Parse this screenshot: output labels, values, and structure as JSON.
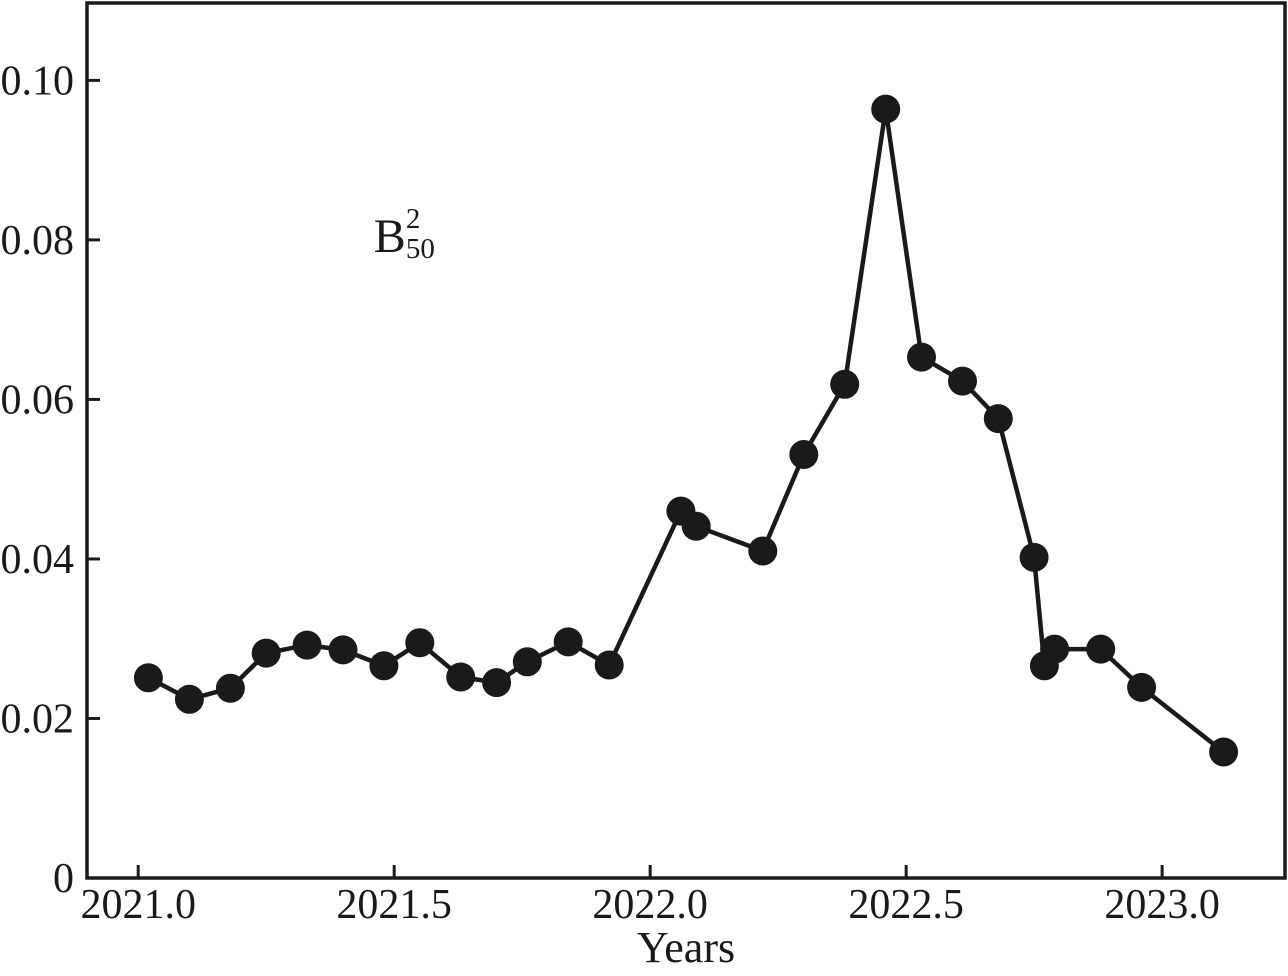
{
  "colors": {
    "foreground": "#1a1a1a",
    "background": "#ffffff"
  },
  "chart_data": {
    "type": "line",
    "title": "",
    "xlabel": "Years",
    "ylabel": "",
    "grid": false,
    "legend": "none",
    "xlim": [
      2020.9,
      2023.24
    ],
    "ylim": [
      0,
      0.1097
    ],
    "x_ticks": {
      "values": [
        2021.0,
        2021.5,
        2022.0,
        2022.5,
        2023.0
      ],
      "labels": [
        "2021.0",
        "2021.5",
        "2022.0",
        "2022.5",
        "2023.0"
      ]
    },
    "y_ticks": {
      "values": [
        0,
        0.02,
        0.04,
        0.06,
        0.08,
        0.1
      ],
      "labels": [
        "0",
        "0.02",
        "0.04",
        "0.06",
        "0.08",
        "0.10"
      ]
    },
    "annotation": {
      "base": "B",
      "superscript": "2",
      "subscript": "50",
      "x": 2021.46,
      "y": 0.0785
    },
    "series": [
      {
        "name": "B50-squared",
        "color": "#1a1a1a",
        "marker": "filled-circle",
        "points": [
          [
            2021.02,
            0.0251
          ],
          [
            2021.1,
            0.0224
          ],
          [
            2021.18,
            0.0238
          ],
          [
            2021.25,
            0.0282
          ],
          [
            2021.33,
            0.0292
          ],
          [
            2021.4,
            0.0286
          ],
          [
            2021.48,
            0.0266
          ],
          [
            2021.55,
            0.0295
          ],
          [
            2021.63,
            0.0252
          ],
          [
            2021.7,
            0.0245
          ],
          [
            2021.76,
            0.0271
          ],
          [
            2021.84,
            0.0296
          ],
          [
            2021.92,
            0.0267
          ],
          [
            2022.06,
            0.046
          ],
          [
            2022.09,
            0.0441
          ],
          [
            2022.22,
            0.041
          ],
          [
            2022.3,
            0.0531
          ],
          [
            2022.38,
            0.0619
          ],
          [
            2022.46,
            0.0964
          ],
          [
            2022.53,
            0.0653
          ],
          [
            2022.61,
            0.0623
          ],
          [
            2022.68,
            0.0576
          ],
          [
            2022.75,
            0.0402
          ],
          [
            2022.77,
            0.0266
          ],
          [
            2022.79,
            0.0287
          ],
          [
            2022.88,
            0.0287
          ],
          [
            2022.96,
            0.0239
          ],
          [
            2023.12,
            0.0158
          ]
        ]
      }
    ]
  }
}
